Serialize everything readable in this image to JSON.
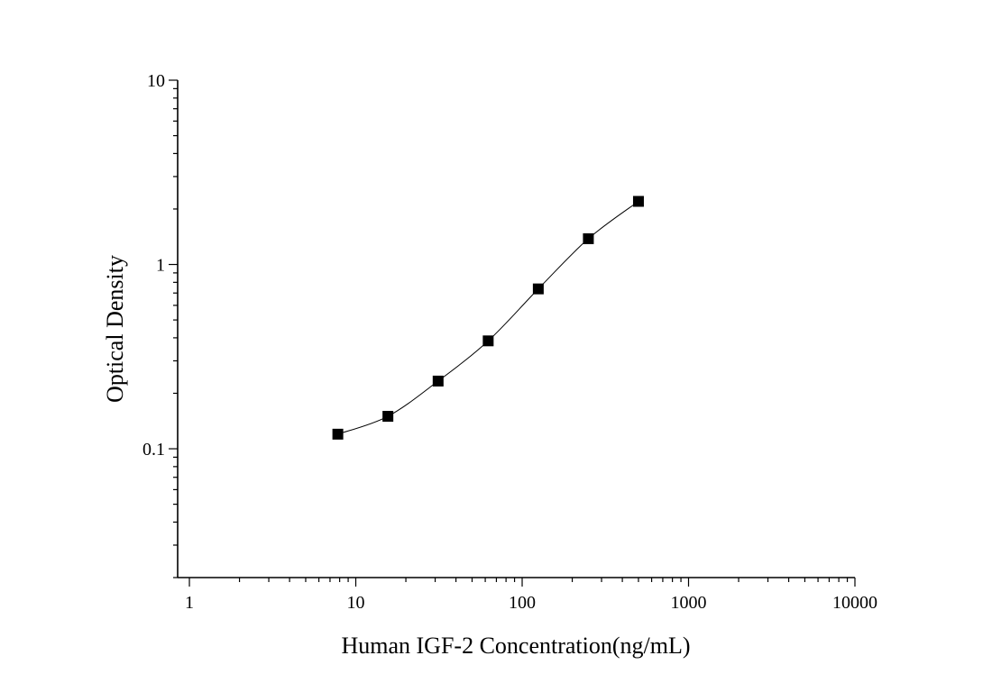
{
  "chart_data": {
    "type": "scatter",
    "title": "",
    "xlabel": "Human IGF-2 Concentration(ng/mL)",
    "ylabel": "Optical Density",
    "x_scale": "log",
    "y_scale": "log",
    "xlim": [
      0.85,
      10000
    ],
    "ylim": [
      0.02,
      10
    ],
    "x_ticks": [
      {
        "value": 1,
        "label": "1"
      },
      {
        "value": 10,
        "label": "10"
      },
      {
        "value": 100,
        "label": "100"
      },
      {
        "value": 1000,
        "label": "1000"
      },
      {
        "value": 10000,
        "label": "10000"
      }
    ],
    "y_ticks": [
      {
        "value": 0.1,
        "label": "0.1"
      },
      {
        "value": 1,
        "label": "1"
      },
      {
        "value": 10,
        "label": "10"
      }
    ],
    "grid": false,
    "legend": "none",
    "series": [
      {
        "marker": "square",
        "connected": true,
        "color": "#000000",
        "x": [
          7.8,
          15.6,
          31.25,
          62.5,
          125,
          250,
          500
        ],
        "y": [
          0.12,
          0.15,
          0.233,
          0.385,
          0.737,
          1.38,
          2.2
        ]
      }
    ]
  }
}
